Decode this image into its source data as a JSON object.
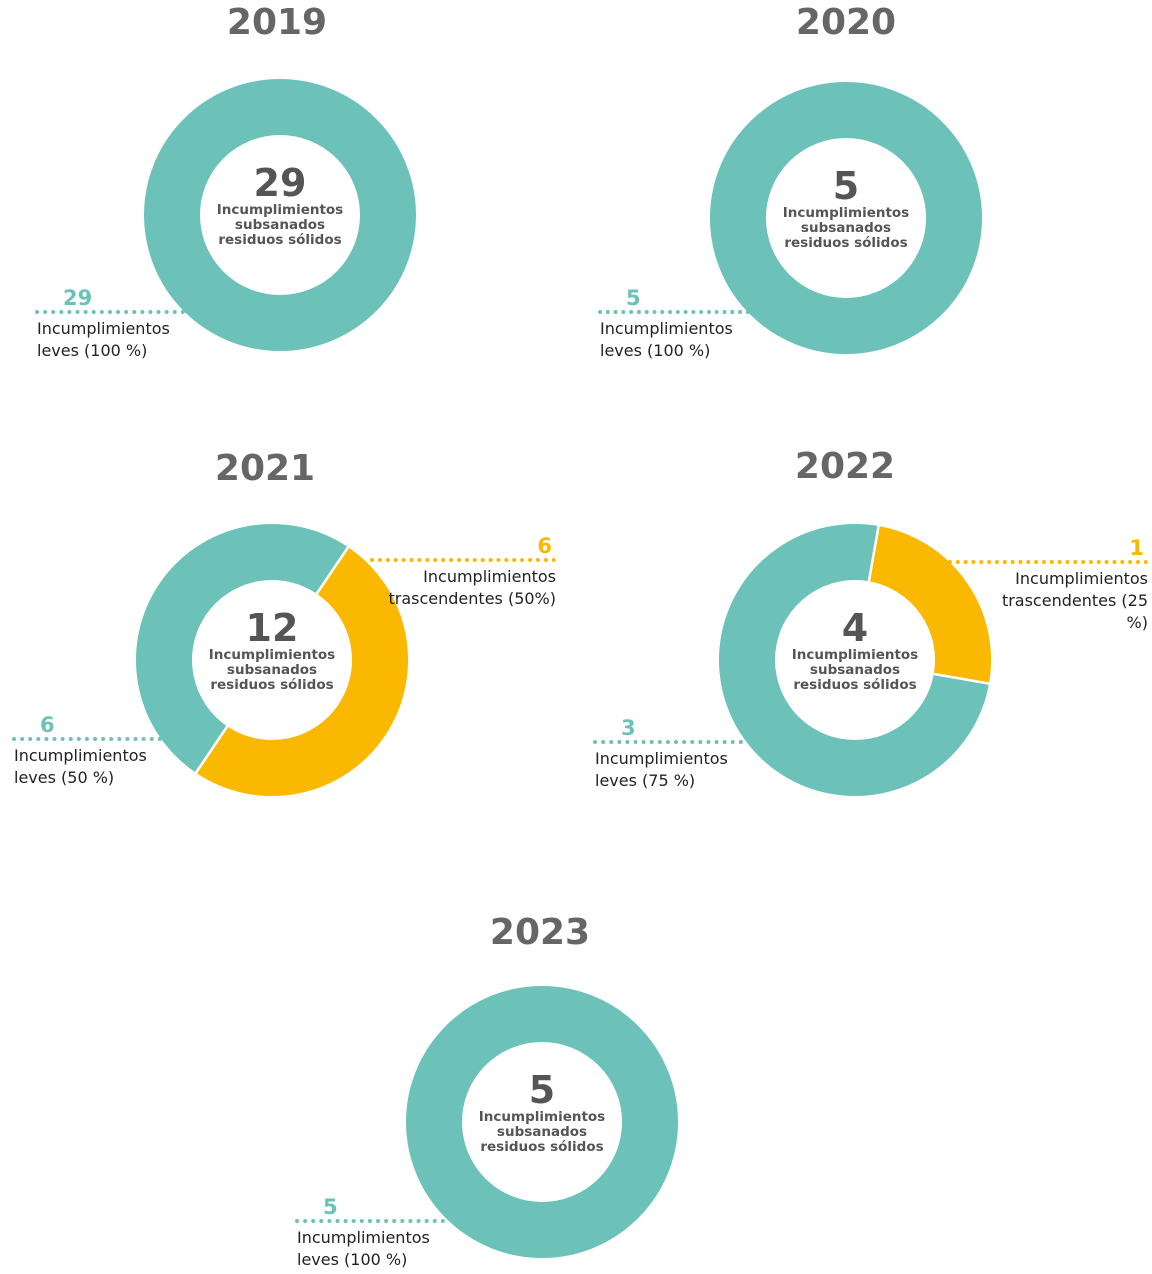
{
  "chart_data": [
    {
      "type": "donut",
      "title": "2019",
      "total": 29,
      "total_label": "Incumplimientos subsanados residuos sólidos",
      "categories": [
        "Incumplimientos leves (100 %)"
      ],
      "values": [
        29
      ],
      "colors": [
        "#6cc2b8"
      ]
    },
    {
      "type": "donut",
      "title": "2020",
      "total": 5,
      "total_label": "Incumplimientos subsanados residuos sólidos",
      "categories": [
        "Incumplimientos leves (100 %)"
      ],
      "values": [
        5
      ],
      "colors": [
        "#6cc2b8"
      ]
    },
    {
      "type": "donut",
      "title": "2021",
      "total": 12,
      "total_label": "Incumplimientos subsanados residuos sólidos",
      "categories": [
        "Incumplimientos leves (50 %)",
        "Incumplimientos trascendentes (50%)"
      ],
      "values": [
        6,
        6
      ],
      "colors": [
        "#6cc2b8",
        "#fbb800"
      ]
    },
    {
      "type": "donut",
      "title": "2022",
      "total": 4,
      "total_label": "Incumplimientos subsanados residuos sólidos",
      "categories": [
        "Incumplimientos leves (75 %)",
        "Incumplimientos trascendentes (25 %)"
      ],
      "values": [
        3,
        1
      ],
      "colors": [
        "#6cc2b8",
        "#fbb800"
      ]
    },
    {
      "type": "donut",
      "title": "2023",
      "total": 5,
      "total_label": "Incumplimientos subsanados residuos sólidos",
      "categories": [
        "Incumplimientos leves (100 %)"
      ],
      "values": [
        5
      ],
      "colors": [
        "#6cc2b8"
      ]
    }
  ]
}
